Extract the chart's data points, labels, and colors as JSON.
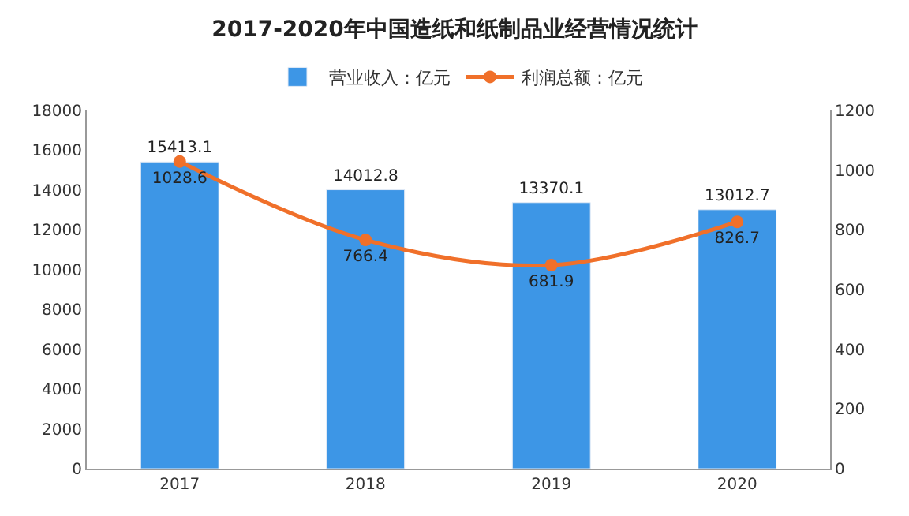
{
  "chart_data": {
    "type": "bar",
    "title": "2017-2020年中国造纸和纸制品业经营情况统计",
    "categories": [
      "2017",
      "2018",
      "2019",
      "2020"
    ],
    "series": [
      {
        "name": "营业收入：亿元",
        "color": "#3d96e6",
        "values": [
          15413.1,
          14012.8,
          13370.1,
          13012.7
        ]
      },
      {
        "name": "利润总额：亿元",
        "type": "line",
        "axis": "y2",
        "color": "#f0702a",
        "marker": "circle",
        "values": [
          1028.6,
          766.4,
          681.9,
          826.7
        ]
      }
    ],
    "ylim": [
      0,
      18000
    ],
    "yticks": [
      0,
      2000,
      4000,
      6000,
      8000,
      10000,
      12000,
      14000,
      16000,
      18000
    ],
    "y2lim": [
      0,
      1200
    ],
    "y2ticks": [
      0,
      200,
      400,
      600,
      800,
      1000,
      1200
    ],
    "data_labels": true,
    "legend": "top",
    "grid": false
  }
}
